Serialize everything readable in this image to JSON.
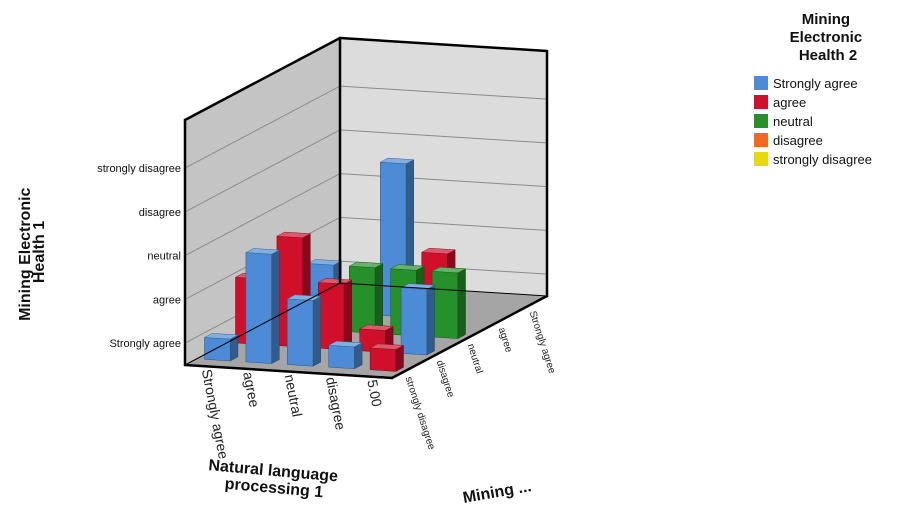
{
  "chart_data": {
    "type": "bar3d",
    "title": "",
    "ylabel_lines": [
      "Mining Electronic",
      "Health 1"
    ],
    "xlabel_lines": [
      "Natural language",
      "processing 1"
    ],
    "zlabel": "Mining ...",
    "legend_title_lines": [
      "Mining",
      "Electronic",
      "Health 2"
    ],
    "y_categories": [
      "Strongly agree",
      "agree",
      "neutral",
      "disagree",
      "strongly disagree"
    ],
    "x_categories": [
      "Strongly agree",
      "agree",
      "neutral",
      "disagree",
      "5.00"
    ],
    "z_categories": [
      "strongly disagree",
      "disagree",
      "neutral",
      "agree",
      "Strongly agree"
    ],
    "series": [
      {
        "name": "Strongly agree",
        "color": "#4d8bd6"
      },
      {
        "name": "agree",
        "color": "#d0102b"
      },
      {
        "name": "neutral",
        "color": "#26902a"
      },
      {
        "name": "disagree",
        "color": "#f26a21"
      },
      {
        "name": "strongly disagree",
        "color": "#e8d90f"
      }
    ],
    "bars": [
      {
        "x": "Strongly agree",
        "z": "Strongly agree",
        "series": "Strongly agree",
        "value": "Strongly agree"
      },
      {
        "x": "Strongly agree",
        "z": "agree",
        "series": "agree",
        "value": "agree"
      },
      {
        "x": "agree",
        "z": "Strongly agree",
        "series": "Strongly agree",
        "value": "neutral"
      },
      {
        "x": "agree",
        "z": "agree",
        "series": "agree",
        "value": "neutral"
      },
      {
        "x": "agree",
        "z": "neutral",
        "series": "Strongly agree",
        "value": "agree"
      },
      {
        "x": "agree",
        "z": "neutral",
        "series": "agree",
        "value": "Strongly agree"
      },
      {
        "x": "neutral",
        "z": "Strongly agree",
        "series": "Strongly agree",
        "value": "agree"
      },
      {
        "x": "neutral",
        "z": "agree",
        "series": "agree",
        "value": "agree"
      },
      {
        "x": "neutral",
        "z": "neutral",
        "series": "neutral",
        "value": "agree"
      },
      {
        "x": "neutral",
        "z": "disagree",
        "series": "Strongly agree",
        "value": "disagree"
      },
      {
        "x": "disagree",
        "z": "Strongly agree",
        "series": "Strongly agree",
        "value": "Strongly agree"
      },
      {
        "x": "disagree",
        "z": "agree",
        "series": "agree",
        "value": "Strongly agree"
      },
      {
        "x": "disagree",
        "z": "neutral",
        "series": "neutral",
        "value": "agree"
      },
      {
        "x": "disagree",
        "z": "disagree",
        "series": "agree",
        "value": "agree"
      },
      {
        "x": "5.00",
        "z": "Strongly agree",
        "series": "agree",
        "value": "Strongly agree"
      },
      {
        "x": "5.00",
        "z": "agree",
        "series": "Strongly agree",
        "value": "agree"
      },
      {
        "x": "5.00",
        "z": "neutral",
        "series": "neutral",
        "value": "agree"
      }
    ],
    "grid": true,
    "legend_position": "top-right"
  }
}
